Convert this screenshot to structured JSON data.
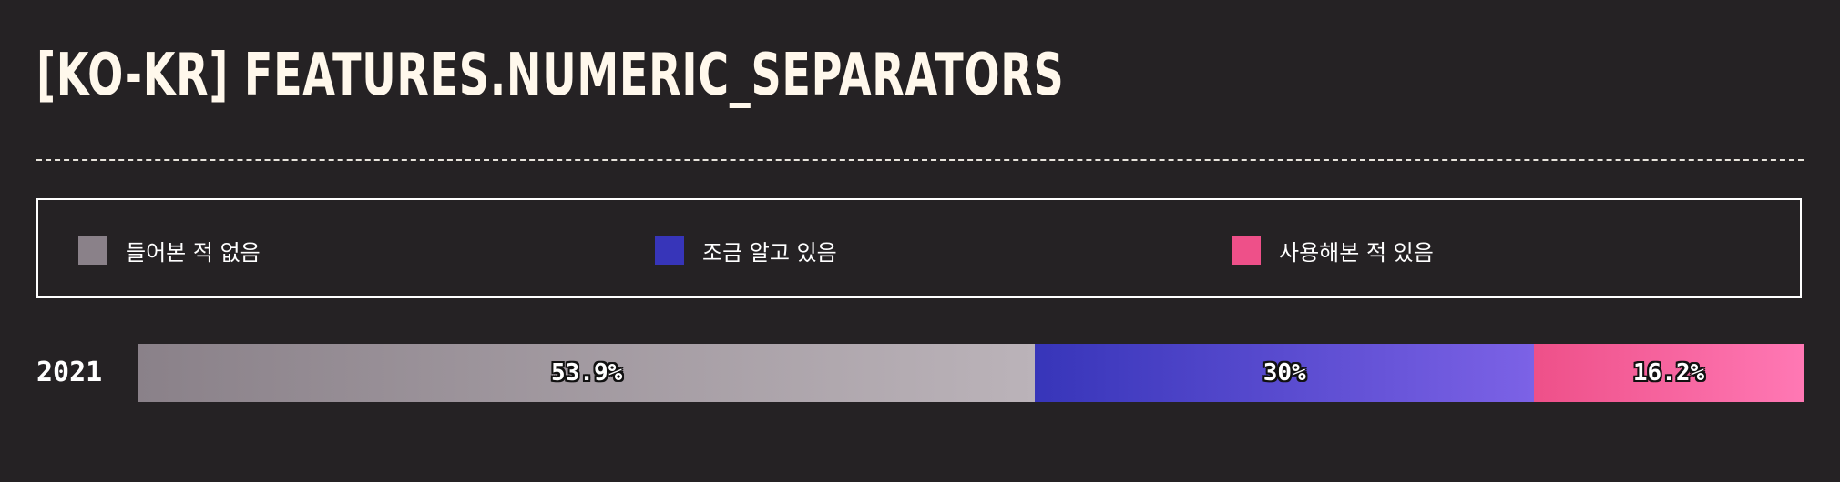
{
  "title": "[KO-KR] FEATURES.NUMERIC_SEPARATORS",
  "chart_data": {
    "type": "bar",
    "orientation": "horizontal",
    "stacked": true,
    "normalized_percent": true,
    "categories": [
      "2021"
    ],
    "series": [
      {
        "name": "들어본 적 없음",
        "values": [
          53.9
        ],
        "label": "53.9%",
        "color_start": "#8a8189",
        "color_end": "#bbb3b9"
      },
      {
        "name": "조금 알고 있음",
        "values": [
          30
        ],
        "label": "30%",
        "color_start": "#3735b9",
        "color_end": "#7c62e6"
      },
      {
        "name": "사용해본 적 있음",
        "values": [
          16.2
        ],
        "label": "16.2%",
        "color_start": "#ee5089",
        "color_end": "#ff78b4"
      }
    ],
    "legend_position": "top",
    "grid": false
  }
}
